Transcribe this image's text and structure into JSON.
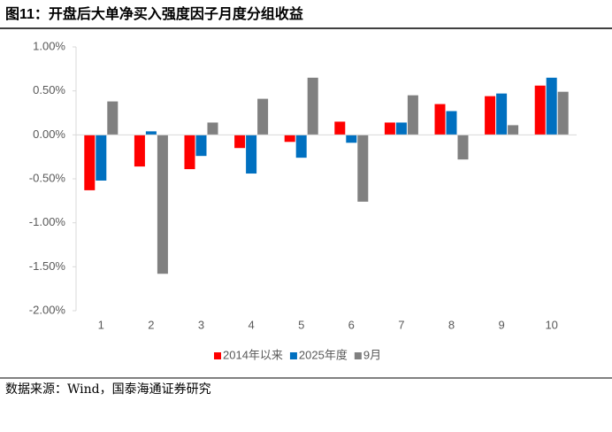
{
  "chart_data": {
    "type": "bar",
    "title": "图11：开盘后大单净买入强度因子月度分组收益",
    "source": "数据来源：Wind，国泰海通证券研究",
    "categories": [
      "1",
      "2",
      "3",
      "4",
      "5",
      "6",
      "7",
      "8",
      "9",
      "10"
    ],
    "series": [
      {
        "name": "2014年以来",
        "color": "#ff0000",
        "values": [
          -0.63,
          -0.36,
          -0.39,
          -0.15,
          -0.08,
          0.15,
          0.14,
          0.35,
          0.44,
          0.56
        ]
      },
      {
        "name": "2025年度",
        "color": "#0070c0",
        "values": [
          -0.52,
          0.04,
          -0.24,
          -0.44,
          -0.26,
          -0.09,
          0.14,
          0.27,
          0.47,
          0.65
        ]
      },
      {
        "name": "9月",
        "color": "#808080",
        "values": [
          0.38,
          -1.58,
          0.14,
          0.41,
          0.65,
          -0.76,
          0.45,
          -0.28,
          0.11,
          0.49
        ]
      }
    ],
    "ylim": [
      -2,
      1
    ],
    "yticks": [
      {
        "value": -2,
        "label": "-2.00%"
      },
      {
        "value": -1.5,
        "label": "-1.50%"
      },
      {
        "value": -1,
        "label": "-1.00%"
      },
      {
        "value": -0.5,
        "label": "-0.50%"
      },
      {
        "value": 0,
        "label": "0.00%"
      },
      {
        "value": 0.5,
        "label": "0.50%"
      },
      {
        "value": 1,
        "label": "1.00%"
      }
    ],
    "grid": false,
    "legend": "bottom"
  }
}
